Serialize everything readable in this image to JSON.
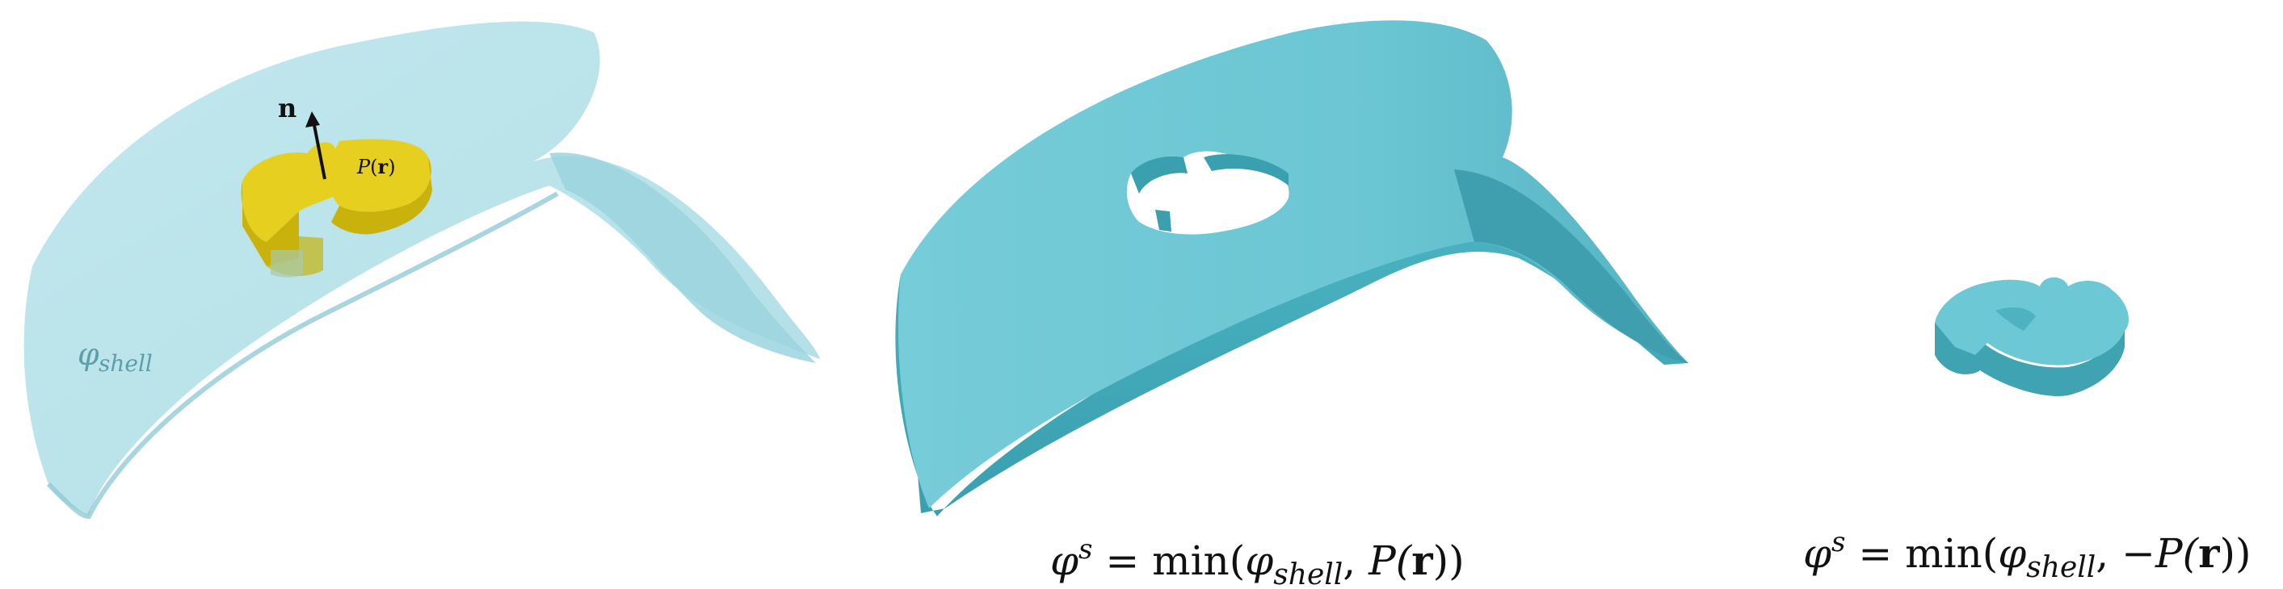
{
  "panels": {
    "left": {
      "normal_label": "n",
      "pattern_label_fn": "P",
      "pattern_label_arg": "r",
      "shell_label_sym": "φ",
      "shell_label_sub": "shell"
    },
    "middle": {
      "equation": {
        "lhs_sym": "φ",
        "lhs_sup": "s",
        "eq": " = ",
        "fn": "min(",
        "arg1_sym": "φ",
        "arg1_sub": "shell",
        "sep": ", ",
        "arg2_fn": "P(",
        "arg2_var": "r",
        "close": "))"
      }
    },
    "right": {
      "equation": {
        "lhs_sym": "φ",
        "lhs_sup": "s",
        "eq": " = ",
        "fn": "min(",
        "arg1_sym": "φ",
        "arg1_sub": "shell",
        "sep": ", ",
        "arg2_fn": "−P(",
        "arg2_var": "r",
        "close": "))"
      }
    }
  },
  "colors": {
    "shell_transparent": "#a9dde6",
    "shell_solid_top": "#6cc9d5",
    "shell_solid_edge": "#3fa9b8",
    "pattern_yellow": "#e6cf1e",
    "pattern_yellow_side": "#c9b20c",
    "arrow": "#111111"
  }
}
